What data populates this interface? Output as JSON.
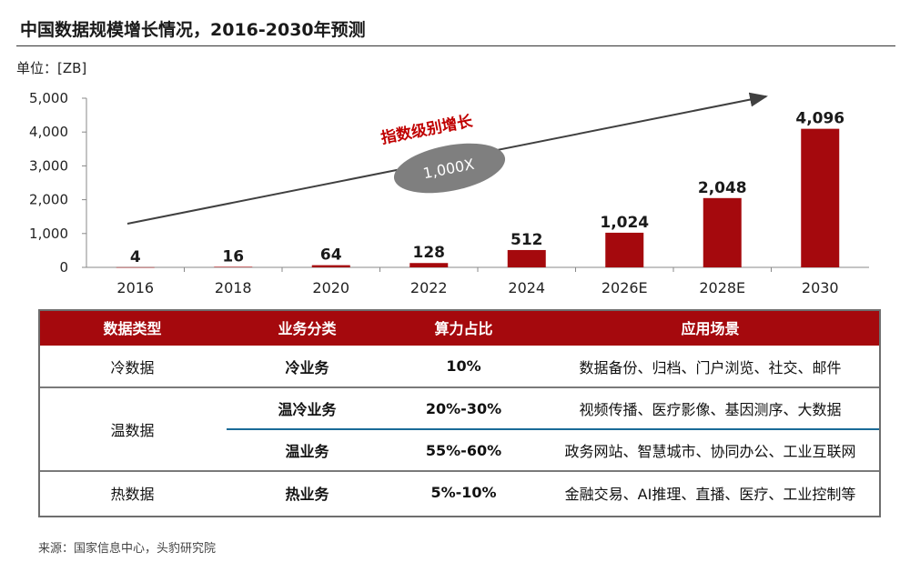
{
  "title": "中国数据规模增长情况，2016-2030年预测",
  "unit_label": "单位：[ZB]",
  "chart_data": {
    "type": "bar",
    "categories": [
      "2016",
      "2018",
      "2020",
      "2022",
      "2024",
      "2026E",
      "2028E",
      "2030"
    ],
    "values": [
      4,
      16,
      64,
      128,
      512,
      1024,
      2048,
      4096
    ],
    "value_labels": [
      "4",
      "16",
      "64",
      "128",
      "512",
      "1,024",
      "2,048",
      "4,096"
    ],
    "ylim": [
      0,
      5000
    ],
    "yticks": [
      0,
      1000,
      2000,
      3000,
      4000,
      5000
    ],
    "ytick_labels": [
      "0",
      "1,000",
      "2,000",
      "3,000",
      "4,000",
      "5,000"
    ],
    "bar_color": "#a5090d",
    "annotation_arrow_label": "指数级别增长",
    "annotation_ellipse_label": "1,000X",
    "annotation_color": "#c00000",
    "ellipse_color": "#7f7f7f"
  },
  "table": {
    "headers": [
      "数据类型",
      "业务分类",
      "算力占比",
      "应用场景"
    ],
    "groups": [
      {
        "type": "冷数据",
        "rows": [
          {
            "business": "冷业务",
            "share": "10%",
            "scenarios": "数据备份、归档、门户浏览、社交、邮件"
          }
        ]
      },
      {
        "type": "温数据",
        "rows": [
          {
            "business": "温冷业务",
            "share": "20%-30%",
            "scenarios": "视频传播、医疗影像、基因测序、大数据"
          },
          {
            "business": "温业务",
            "share": "55%-60%",
            "scenarios": "政务网站、智慧城市、协同办公、工业互联网"
          }
        ]
      },
      {
        "type": "热数据",
        "rows": [
          {
            "business": "热业务",
            "share": "5%-10%",
            "scenarios": "金融交易、AI推理、直播、医疗、工业控制等"
          }
        ]
      }
    ]
  },
  "source": "来源：国家信息中心，头豹研究院"
}
